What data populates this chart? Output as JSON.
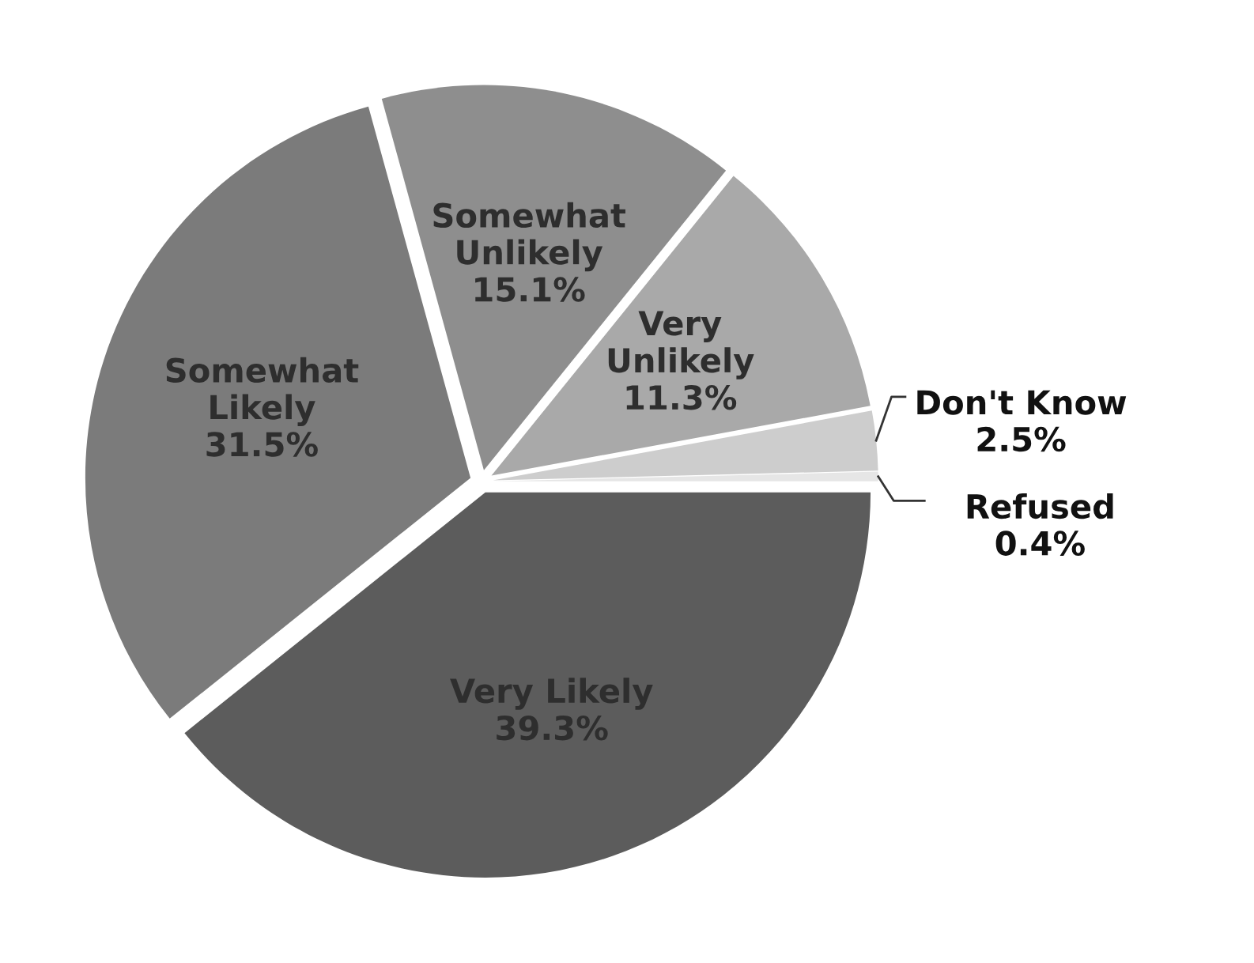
{
  "chart_data": {
    "type": "pie",
    "categories": [
      "Very Likely",
      "Somewhat\nLikely",
      "Somewhat\nUnlikely",
      "Very\nUnlikely",
      "Don't Know",
      "Refused"
    ],
    "values": [
      39.3,
      31.5,
      15.1,
      11.3,
      2.5,
      0.4
    ],
    "colors": [
      "#5c5c5c",
      "#7b7b7b",
      "#8e8e8e",
      "#a9a9a9",
      "#cdcdcd",
      "#e6e6e6"
    ],
    "value_labels": [
      "39.3%",
      "31.5%",
      "15.1%",
      "11.3%",
      "2.5%",
      "0.4%"
    ],
    "legend": false
  }
}
